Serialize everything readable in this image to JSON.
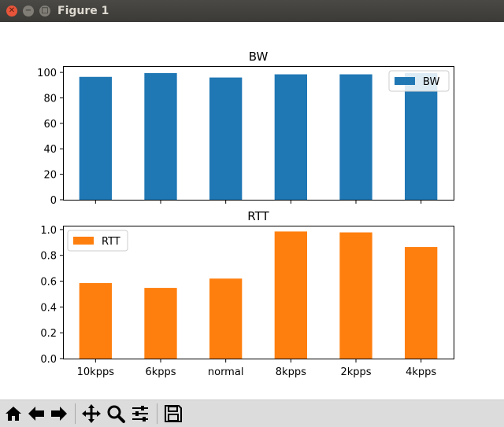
{
  "window": {
    "title": "Figure 1"
  },
  "toolbar": {
    "buttons": [
      {
        "name": "home-button",
        "icon": "home-icon"
      },
      {
        "name": "back-button",
        "icon": "arrow-left-icon"
      },
      {
        "name": "forward-button",
        "icon": "arrow-right-icon"
      },
      {
        "name": "pan-button",
        "icon": "move-icon"
      },
      {
        "name": "zoom-button",
        "icon": "magnifier-icon"
      },
      {
        "name": "configure-subplots-button",
        "icon": "sliders-icon"
      },
      {
        "name": "save-button",
        "icon": "floppy-disk-icon"
      }
    ]
  },
  "colors": {
    "bw": "#1f77b4",
    "rtt": "#ff7f0e"
  },
  "chart_data": [
    {
      "type": "bar",
      "title": "BW",
      "categories": [
        "10kpps",
        "6kpps",
        "normal",
        "8kpps",
        "2kpps",
        "4kpps"
      ],
      "series": [
        {
          "name": "BW",
          "values": [
            96.5,
            99.5,
            96,
            98.5,
            98.5,
            99.5
          ]
        }
      ],
      "ylim": [
        0,
        105
      ],
      "yticks": [
        0,
        20,
        40,
        60,
        80,
        100
      ],
      "show_xticklabels": false,
      "legend": "upper right",
      "grid": false
    },
    {
      "type": "bar",
      "title": "RTT",
      "categories": [
        "10kpps",
        "6kpps",
        "normal",
        "8kpps",
        "2kpps",
        "4kpps"
      ],
      "series": [
        {
          "name": "RTT",
          "values": [
            0.585,
            0.548,
            0.62,
            0.985,
            0.978,
            0.865
          ]
        }
      ],
      "ylim": [
        0,
        1.03
      ],
      "yticks": [
        "0.0",
        "0.2",
        "0.4",
        "0.6",
        "0.8",
        "1.0"
      ],
      "show_xticklabels": true,
      "legend": "upper left",
      "grid": false
    }
  ]
}
